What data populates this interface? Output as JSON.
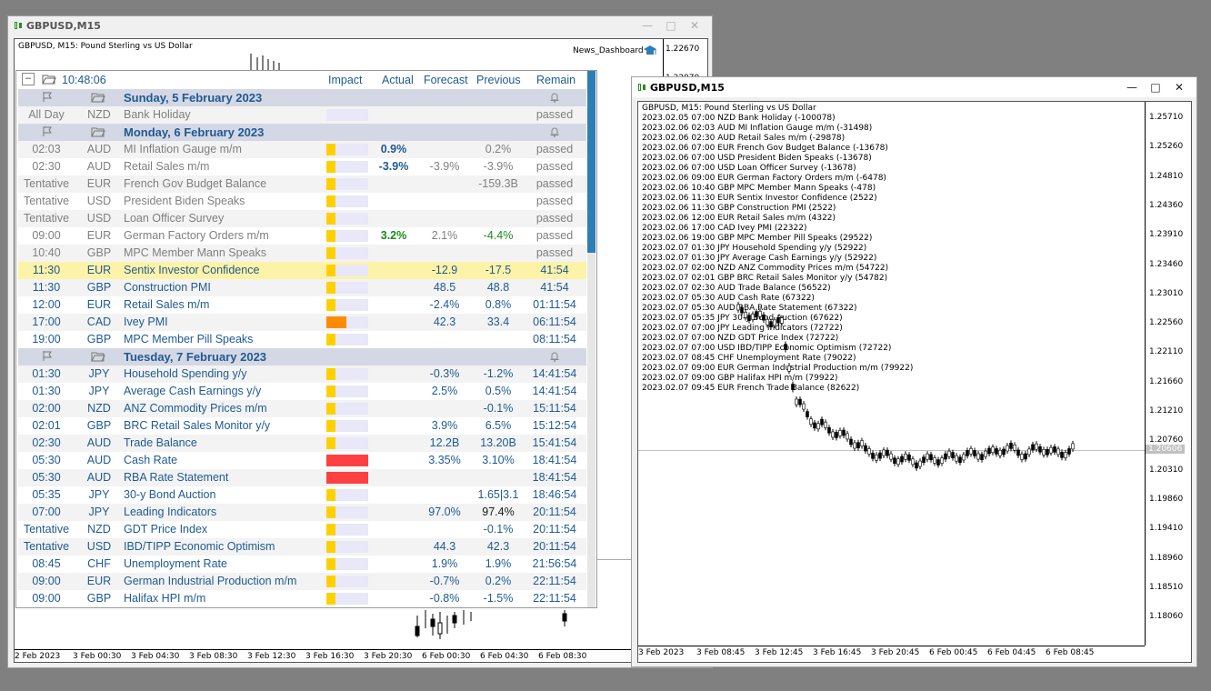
{
  "win1": {
    "title": "GBPUSD,M15",
    "chart_caption": "GBPUSD, M15:  Pound Sterling vs US Dollar",
    "indicator_label": "News_Dashboard",
    "yticks": [
      "1.22670",
      "1.22070"
    ],
    "xticks": [
      "2 Feb 2023",
      "3 Feb 00:30",
      "3 Feb 04:30",
      "3 Feb 08:30",
      "3 Feb 12:30",
      "3 Feb 16:30",
      "3 Feb 20:30",
      "6 Feb 00:30",
      "6 Feb 04:30",
      "6 Feb 08:30"
    ]
  },
  "dashboard": {
    "time": "10:48:06",
    "columns": {
      "impact": "Impact",
      "actual": "Actual",
      "forecast": "Forecast",
      "previous": "Previous",
      "remain": "Remain"
    },
    "rows": [
      {
        "kind": "day",
        "label": "Sunday, 5 February 2023"
      },
      {
        "time": "All Day",
        "cur": "NZD",
        "event": "Bank Holiday",
        "impact": 0,
        "actual": "",
        "forecast": "",
        "previous": "",
        "remain": "passed",
        "state": "past"
      },
      {
        "kind": "day",
        "label": "Monday, 6 February 2023"
      },
      {
        "time": "02:03",
        "cur": "AUD",
        "event": "MI Inflation Gauge m/m",
        "impact": 1,
        "actual": "0.9%",
        "actual_color": "#1f5a93",
        "forecast": "",
        "previous": "0.2%",
        "remain": "passed",
        "state": "past"
      },
      {
        "time": "02:30",
        "cur": "AUD",
        "event": "Retail Sales m/m",
        "impact": 1,
        "actual": "-3.9%",
        "actual_color": "#1f5a93",
        "forecast": "-3.9%",
        "previous": "-3.9%",
        "remain": "passed",
        "state": "past"
      },
      {
        "time": "Tentative",
        "cur": "EUR",
        "event": "French Gov Budget Balance",
        "impact": 1,
        "actual": "",
        "forecast": "",
        "previous": "-159.3B",
        "remain": "passed",
        "state": "past"
      },
      {
        "time": "Tentative",
        "cur": "USD",
        "event": "President Biden Speaks",
        "impact": 1,
        "actual": "",
        "forecast": "",
        "previous": "",
        "remain": "passed",
        "state": "past"
      },
      {
        "time": "Tentative",
        "cur": "USD",
        "event": "Loan Officer Survey",
        "impact": 1,
        "actual": "",
        "forecast": "",
        "previous": "",
        "remain": "passed",
        "state": "past"
      },
      {
        "time": "09:00",
        "cur": "EUR",
        "event": "German Factory Orders m/m",
        "impact": 1,
        "actual": "3.2%",
        "actual_color": "#1a8a1a",
        "forecast": "2.1%",
        "previous": "-4.4%",
        "previous_color": "#1a8a1a",
        "remain": "passed",
        "state": "past"
      },
      {
        "time": "10:40",
        "cur": "GBP",
        "event": "MPC Member Mann Speaks",
        "impact": 1,
        "actual": "",
        "forecast": "",
        "previous": "",
        "remain": "passed",
        "state": "past"
      },
      {
        "time": "11:30",
        "cur": "EUR",
        "event": "Sentix Investor Confidence",
        "impact": 1,
        "actual": "",
        "forecast": "-12.9",
        "previous": "-17.5",
        "remain": "41:54",
        "state": "current"
      },
      {
        "time": "11:30",
        "cur": "GBP",
        "event": "Construction PMI",
        "impact": 1,
        "actual": "",
        "forecast": "48.5",
        "previous": "48.8",
        "remain": "41:54",
        "state": "future"
      },
      {
        "time": "12:00",
        "cur": "EUR",
        "event": "Retail Sales m/m",
        "impact": 1,
        "actual": "",
        "forecast": "-2.4%",
        "previous": "0.8%",
        "remain": "01:11:54",
        "state": "future"
      },
      {
        "time": "17:00",
        "cur": "CAD",
        "event": "Ivey PMI",
        "impact": 2,
        "actual": "",
        "forecast": "42.3",
        "previous": "33.4",
        "remain": "06:11:54",
        "state": "future"
      },
      {
        "time": "19:00",
        "cur": "GBP",
        "event": "MPC Member Pill Speaks",
        "impact": 1,
        "actual": "",
        "forecast": "",
        "previous": "",
        "remain": "08:11:54",
        "state": "future"
      },
      {
        "kind": "day",
        "label": "Tuesday, 7 February 2023"
      },
      {
        "time": "01:30",
        "cur": "JPY",
        "event": "Household Spending y/y",
        "impact": 1,
        "actual": "",
        "forecast": "-0.3%",
        "previous": "-1.2%",
        "remain": "14:41:54",
        "state": "future"
      },
      {
        "time": "01:30",
        "cur": "JPY",
        "event": "Average Cash Earnings y/y",
        "impact": 1,
        "actual": "",
        "forecast": "2.5%",
        "previous": "0.5%",
        "remain": "14:41:54",
        "state": "future"
      },
      {
        "time": "02:00",
        "cur": "NZD",
        "event": "ANZ Commodity Prices m/m",
        "impact": 1,
        "actual": "",
        "forecast": "",
        "previous": "-0.1%",
        "remain": "15:11:54",
        "state": "future"
      },
      {
        "time": "02:01",
        "cur": "GBP",
        "event": "BRC Retail Sales Monitor y/y",
        "impact": 1,
        "actual": "",
        "forecast": "3.9%",
        "previous": "6.5%",
        "remain": "15:12:54",
        "state": "future"
      },
      {
        "time": "02:30",
        "cur": "AUD",
        "event": "Trade Balance",
        "impact": 1,
        "actual": "",
        "forecast": "12.2B",
        "previous": "13.20B",
        "remain": "15:41:54",
        "state": "future"
      },
      {
        "time": "05:30",
        "cur": "AUD",
        "event": "Cash Rate",
        "impact": 3,
        "actual": "",
        "forecast": "3.35%",
        "previous": "3.10%",
        "remain": "18:41:54",
        "state": "future"
      },
      {
        "time": "05:30",
        "cur": "AUD",
        "event": "RBA Rate Statement",
        "impact": 3,
        "actual": "",
        "forecast": "",
        "previous": "",
        "remain": "18:41:54",
        "state": "future"
      },
      {
        "time": "05:35",
        "cur": "JPY",
        "event": "30-y Bond Auction",
        "impact": 1,
        "actual": "",
        "forecast": "",
        "previous": "1.65|3.1",
        "remain": "18:46:54",
        "state": "future"
      },
      {
        "time": "07:00",
        "cur": "JPY",
        "event": "Leading Indicators",
        "impact": 1,
        "actual": "",
        "forecast": "97.0%",
        "previous": "97.4%",
        "previous_color": "#1a1a1a",
        "remain": "20:11:54",
        "state": "future"
      },
      {
        "time": "Tentative",
        "cur": "NZD",
        "event": "GDT Price Index",
        "impact": 1,
        "actual": "",
        "forecast": "",
        "previous": "-0.1%",
        "remain": "20:11:54",
        "state": "future"
      },
      {
        "time": "Tentative",
        "cur": "USD",
        "event": "IBD/TIPP Economic Optimism",
        "impact": 1,
        "actual": "",
        "forecast": "44.3",
        "previous": "42.3",
        "remain": "20:11:54",
        "state": "future"
      },
      {
        "time": "08:45",
        "cur": "CHF",
        "event": "Unemployment Rate",
        "impact": 1,
        "actual": "",
        "forecast": "1.9%",
        "previous": "1.9%",
        "remain": "21:56:54",
        "state": "future"
      },
      {
        "time": "09:00",
        "cur": "EUR",
        "event": "German Industrial Production m/m",
        "impact": 1,
        "actual": "",
        "forecast": "-0.7%",
        "previous": "0.2%",
        "remain": "22:11:54",
        "state": "future"
      },
      {
        "time": "09:00",
        "cur": "GBP",
        "event": "Halifax HPI m/m",
        "impact": 1,
        "actual": "",
        "forecast": "-0.8%",
        "previous": "-1.5%",
        "remain": "22:11:54",
        "state": "future"
      }
    ]
  },
  "win2": {
    "title": "GBPUSD,M15",
    "chart_caption": "GBPUSD, M15:  Pound Sterling vs US Dollar",
    "news_lines": [
      "2023.02.05 07:00 NZD Bank Holiday (-100078)",
      "2023.02.06 02:03 AUD MI Inflation Gauge m/m (-31498)",
      "2023.02.06 02:30 AUD Retail Sales m/m (-29878)",
      "2023.02.06 07:00 EUR French Gov Budget Balance (-13678)",
      "2023.02.06 07:00 USD President Biden Speaks (-13678)",
      "2023.02.06 07:00 USD Loan Officer Survey (-13678)",
      "2023.02.06 09:00 EUR German Factory Orders m/m (-6478)",
      "2023.02.06 10:40 GBP MPC Member Mann Speaks (-478)",
      "2023.02.06 11:30 EUR Sentix Investor Confidence (2522)",
      "2023.02.06 11:30 GBP Construction PMI (2522)",
      "2023.02.06 12:00 EUR Retail Sales m/m (4322)",
      "2023.02.06 17:00 CAD Ivey PMI (22322)",
      "2023.02.06 19:00 GBP MPC Member Pill Speaks (29522)",
      "2023.02.07 01:30 JPY Household Spending y/y (52922)",
      "2023.02.07 01:30 JPY Average Cash Earnings y/y (52922)",
      "2023.02.07 02:00 NZD ANZ Commodity Prices m/m (54722)",
      "2023.02.07 02:01 GBP BRC Retail Sales Monitor y/y (54782)",
      "2023.02.07 02:30 AUD Trade Balance (56522)",
      "2023.02.07 05:30 AUD Cash Rate (67322)",
      "2023.02.07 05:30 AUD RBA Rate Statement (67322)",
      "2023.02.07 05:35 JPY 30-y Bond Auction (67622)",
      "2023.02.07 07:00 JPY Leading Indicators (72722)",
      "2023.02.07 07:00 NZD GDT Price Index (72722)",
      "2023.02.07 07:00 USD IBD/TIPP Economic Optimism (72722)",
      "2023.02.07 08:45 CHF Unemployment Rate (79022)",
      "2023.02.07 09:00 EUR German Industrial Production m/m (79922)",
      "2023.02.07 09:00 GBP Halifax HPI m/m (79922)",
      "2023.02.07 09:45 EUR French Trade Balance (82622)"
    ],
    "yticks": [
      "1.25710",
      "1.25260",
      "1.24810",
      "1.24360",
      "1.23910",
      "1.23460",
      "1.23010",
      "1.22560",
      "1.22110",
      "1.21660",
      "1.21210",
      "1.20760",
      "1.20310",
      "1.19860",
      "1.19410",
      "1.18960",
      "1.18510",
      "1.18060"
    ],
    "price_tag": "1.20606",
    "xticks": [
      "3 Feb 2023",
      "3 Feb 08:45",
      "3 Feb 12:45",
      "3 Feb 16:45",
      "3 Feb 20:45",
      "6 Feb 00:45",
      "6 Feb 04:45",
      "6 Feb 08:45"
    ]
  },
  "colors": {
    "impact_low": "#ffd000",
    "impact_med": "#ff8c00",
    "impact_high": "#ff4040",
    "impact_track": "#e6e6f6",
    "row_highlight": "#fdf3a8"
  }
}
